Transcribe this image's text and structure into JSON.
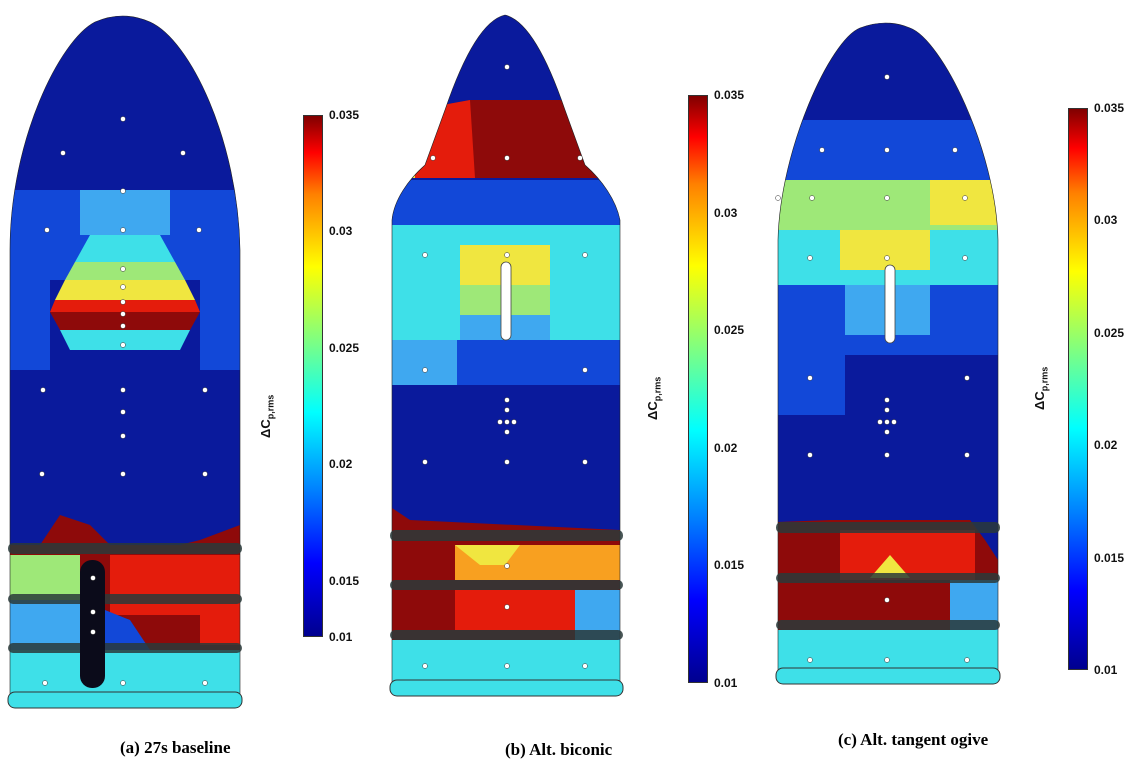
{
  "panels": [
    {
      "caption": "(a) 27s baseline",
      "cbar_label": "ΔC",
      "cbar_sub": "p,rms",
      "ticks": [
        "0.035",
        "0.03",
        "0.025",
        "0.02",
        "0.015",
        "0.01"
      ]
    },
    {
      "caption": "(b) Alt. biconic",
      "cbar_label": "ΔC",
      "cbar_sub": "p,rms",
      "ticks": [
        "0.035",
        "0.03",
        "0.025",
        "0.02",
        "0.015",
        "0.01"
      ]
    },
    {
      "caption": "(c) Alt. tangent ogive",
      "cbar_label": "ΔC",
      "cbar_sub": "p,rms",
      "ticks": [
        "0.035",
        "0.03",
        "0.025",
        "0.02",
        "0.015",
        "0.01"
      ]
    }
  ],
  "colors": {
    "dark_blue": "#0a1a9c",
    "blue": "#1248d8",
    "light_blue": "#3fa8f0",
    "cyan": "#3ee0e8",
    "green": "#9ee878",
    "yellow": "#f0e640",
    "orange": "#f8a020",
    "red": "#e41c0c",
    "dark_red": "#8e0a0a"
  }
}
